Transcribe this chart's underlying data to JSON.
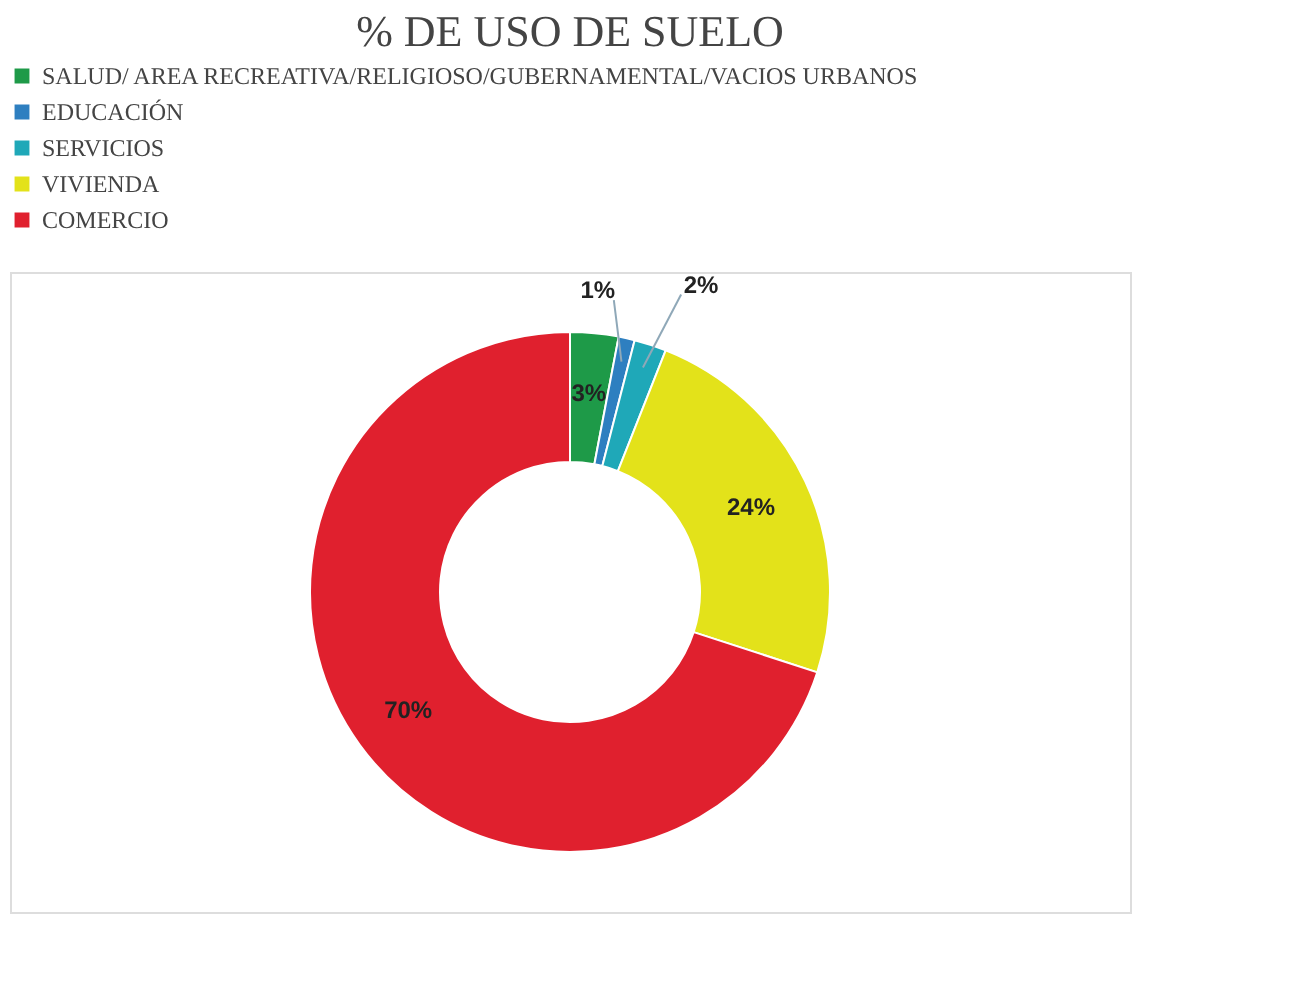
{
  "chart_data": {
    "type": "donut",
    "title": "% DE USO DE SUELO",
    "categories": [
      "SALUD/ AREA RECREATIVA/RELIGIOSO/GUBERNAMENTAL/VACIOS URBANOS",
      "EDUCACIÓN",
      "SERVICIOS",
      "VIVIENDA",
      "COMERCIO"
    ],
    "values": [
      3,
      1,
      2,
      24,
      70
    ],
    "colors": [
      "#1e9a48",
      "#2e7fc0",
      "#1fa8b8",
      "#e3e21a",
      "#e0202e"
    ],
    "value_labels": [
      "3%",
      "1%",
      "2%",
      "24%",
      "70%"
    ],
    "legend": "top left"
  }
}
